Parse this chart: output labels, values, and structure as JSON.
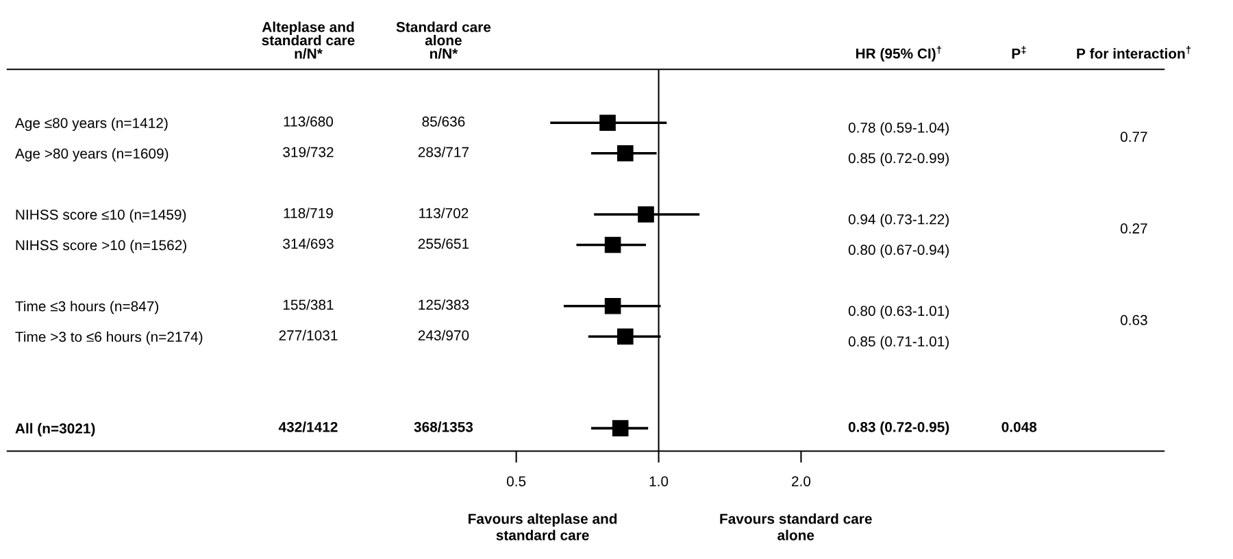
{
  "chart_data": {
    "type": "scatter",
    "orientation": "horizontal",
    "categories": [
      "Age ≤80 years (n=1412)",
      "Age >80 years (n=1609)",
      null,
      "NIHSS score ≤10 (n=1459)",
      "NIHSS score >10 (n=1562)",
      null,
      "Time ≤3 hours (n=847)",
      "Time >3 to ≤6 hours (n=2174)",
      null,
      null,
      "All (n=3021)"
    ],
    "series": [
      {
        "color": "#000000",
        "marker": "square",
        "values": [
          0.78,
          0.85,
          null,
          0.94,
          0.8,
          null,
          0.8,
          0.85,
          null,
          null,
          0.83
        ],
        "errors": [
          [
            0.59,
            1.04
          ],
          [
            0.72,
            0.99
          ],
          null,
          [
            0.73,
            1.22
          ],
          [
            0.67,
            0.94
          ],
          null,
          [
            0.63,
            1.01
          ],
          [
            0.71,
            1.01
          ],
          null,
          null,
          [
            0.72,
            0.95
          ]
        ]
      }
    ],
    "log": "x",
    "xlim": [
      0.042,
      11.7
    ],
    "xticks": [
      0.5,
      {
        "value": 1,
        "label": "1.0"
      },
      {
        "value": 2,
        "label": "2.0"
      }
    ],
    "ref_lines": [
      {
        "axis": "x",
        "value": 1,
        "color": "#000000"
      }
    ],
    "grid": false,
    "legend": false,
    "annotations": [
      "Alteplase and\nstandard care\nn/N*",
      "Standard care\nalone\nn/N*",
      "HR (95% CI)$^{†}$",
      "P$^{‡}$",
      "P for interaction$^{†}$",
      "113/680",
      "85/636",
      "319/732",
      "283/717",
      "118/719",
      "113/702",
      "314/693",
      "255/651",
      "155/381",
      "125/383",
      "277/1031",
      "243/970",
      "432/1412",
      "368/1353",
      "0.78 (0.59-1.04)",
      "0.85 (0.72-0.99)",
      "0.94 (0.73-1.22)",
      "0.80 (0.67-0.94)",
      "0.80 (0.63-1.01)",
      "0.85 (0.71-1.01)",
      "0.83 (0.72-0.95)",
      "0.77",
      "0.27",
      "0.63",
      "0.048",
      "Favours alteplase and\nstandard care",
      "Favours standard care\nalone"
    ]
  }
}
